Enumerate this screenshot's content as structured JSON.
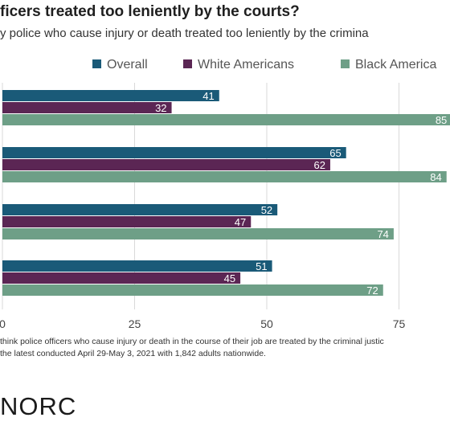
{
  "header": {
    "title": "ficers treated too leniently by the courts?",
    "subtitle": "y police who cause injury or death treated too leniently by the crimina"
  },
  "legend": [
    {
      "label": "Overall",
      "color": "#1a5a78"
    },
    {
      "label": "White Americans",
      "color": "#5b2654"
    },
    {
      "label": "Black America",
      "color": "#6e9f87"
    }
  ],
  "chart_data": {
    "type": "bar",
    "orientation": "horizontal",
    "categories": [
      "",
      "",
      "",
      ""
    ],
    "series": [
      {
        "name": "Overall",
        "color": "#1a5a78",
        "values": [
          41,
          65,
          52,
          51
        ]
      },
      {
        "name": "White Americans",
        "color": "#5b2654",
        "values": [
          32,
          62,
          47,
          45
        ]
      },
      {
        "name": "Black America",
        "color": "#6e9f87",
        "values": [
          85,
          84,
          74,
          72
        ]
      }
    ],
    "value_labels": [
      [
        "41",
        "65",
        "52",
        "51"
      ],
      [
        "32",
        "62",
        "47",
        "45"
      ],
      [
        "85",
        "84",
        "74",
        "72"
      ]
    ],
    "xticks": [
      0,
      25,
      50,
      75
    ],
    "xtick_labels": [
      "0",
      "25",
      "50",
      "75"
    ],
    "xlim": [
      0,
      100
    ],
    "grid": true,
    "legend_position": "top"
  },
  "footnote": {
    "line1": "think police officers who cause injury or death in the course of their job are treated by the criminal justic",
    "line2": " the latest conducted April 29-May 3, 2021 with 1,842 adults nationwide."
  },
  "logo": {
    "text": "NORC"
  }
}
